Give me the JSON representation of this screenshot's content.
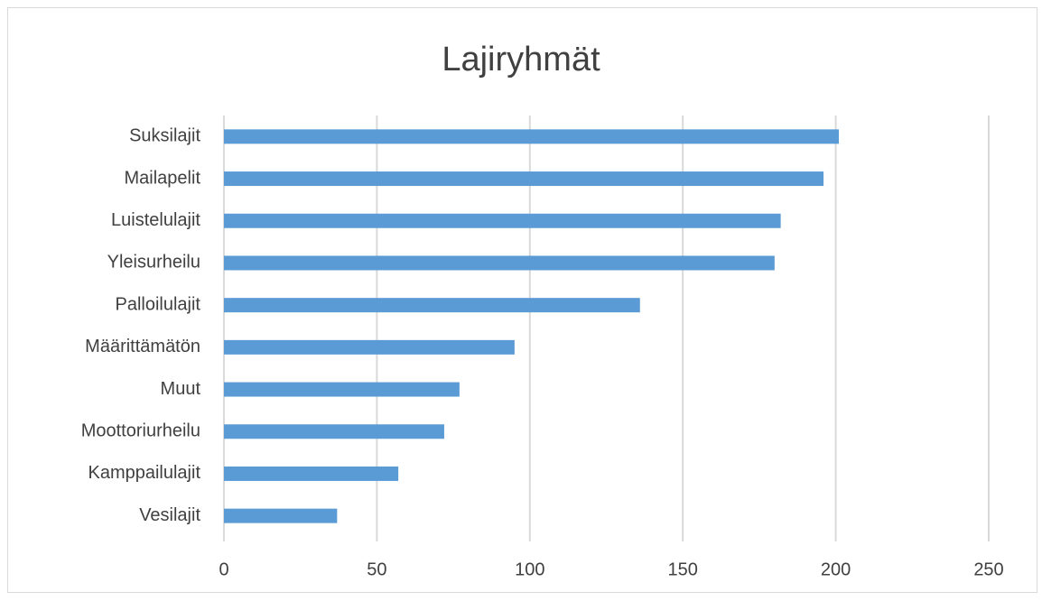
{
  "chart_data": {
    "type": "barh",
    "title": "Lajiryhmät",
    "categories": [
      "Suksilajit",
      "Mailapelit",
      "Luistelulajit",
      "Yleisurheilu",
      "Palloilulajit",
      "Määrittämätön",
      "Muut",
      "Moottoriurheilu",
      "Kamppailulajit",
      "Vesilajit"
    ],
    "values": [
      201,
      196,
      182,
      180,
      136,
      95,
      77,
      72,
      57,
      37
    ],
    "color": "#5b9bd5",
    "xlim": [
      0,
      250
    ],
    "xticks": [
      0,
      50,
      100,
      150,
      200,
      250
    ],
    "grid": true
  }
}
